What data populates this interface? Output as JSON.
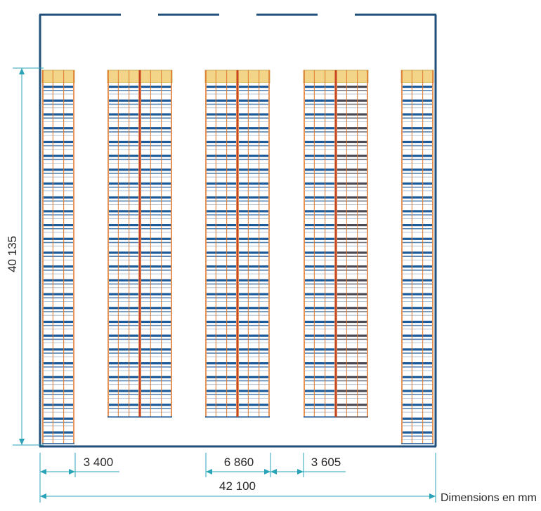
{
  "dimensions": {
    "height_mm": "40 135",
    "aisle_width": "3 400",
    "double_rack_depth": "6 860",
    "aisle_width_2": "3 605",
    "total_width": "42 100"
  },
  "units_note": "Dimensions en mm",
  "colors": {
    "wall": "#1f4f7a",
    "dimension_line": "#2aa3b8",
    "upright": "#e07a2e",
    "pallet_beam": "#1c5a9a",
    "pallet_top": "#f3d58a",
    "dark_beam": "#4a4a55"
  },
  "racks": [
    {
      "name": "rack-single-left",
      "modules": 1,
      "dark_modules": []
    },
    {
      "name": "rack-double-1",
      "modules": 2,
      "dark_modules": []
    },
    {
      "name": "rack-double-2",
      "modules": 2,
      "dark_modules": []
    },
    {
      "name": "rack-double-3",
      "modules": 2,
      "dark_modules": [
        1
      ]
    },
    {
      "name": "rack-single-right",
      "modules": 1,
      "dark_modules": []
    }
  ]
}
